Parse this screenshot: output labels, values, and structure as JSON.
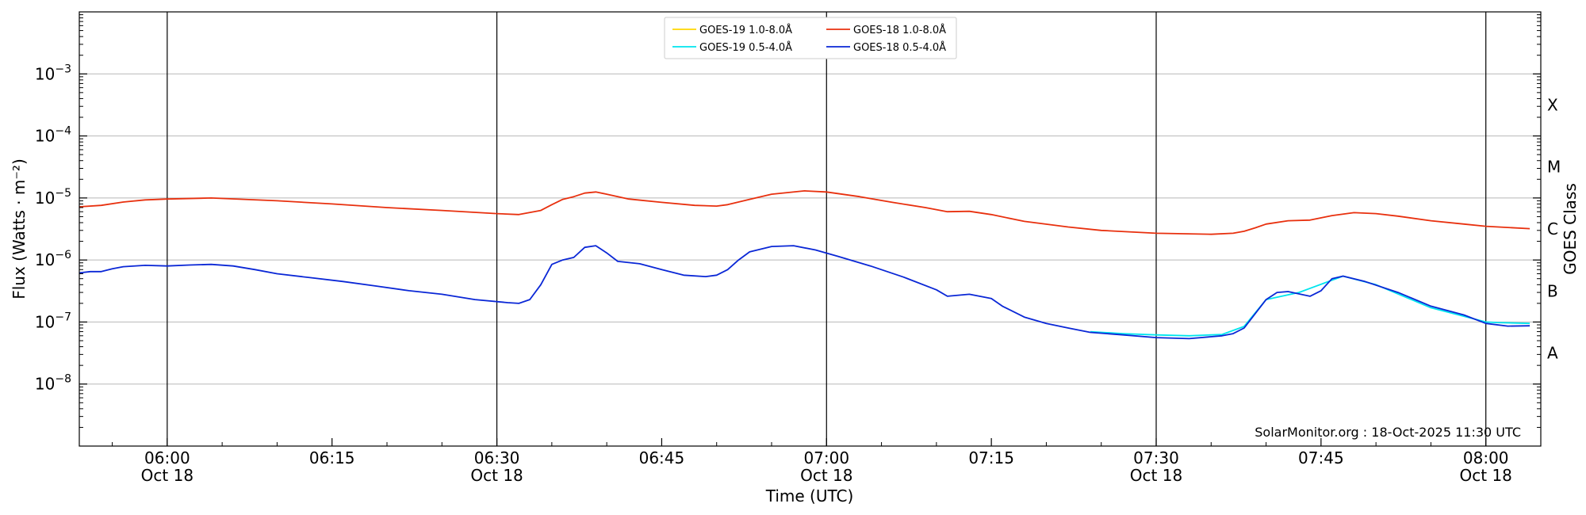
{
  "chart_data": {
    "type": "line",
    "xlabel": "Time (UTC)",
    "ylabel": "Flux (Watts · m⁻²)",
    "y2label": "GOES Class",
    "yscale": "log",
    "ylim": [
      1e-09,
      0.01
    ],
    "xlim": [
      "05:52",
      "08:05"
    ],
    "grid": "horizontal",
    "legend_position": "top-center",
    "x_ticks": [
      {
        "time": "06:00",
        "label": "06:00",
        "sublabel": "Oct 18"
      },
      {
        "time": "06:15",
        "label": "06:15",
        "sublabel": ""
      },
      {
        "time": "06:30",
        "label": "06:30",
        "sublabel": "Oct 18"
      },
      {
        "time": "06:45",
        "label": "06:45",
        "sublabel": ""
      },
      {
        "time": "07:00",
        "label": "07:00",
        "sublabel": "Oct 18"
      },
      {
        "time": "07:15",
        "label": "07:15",
        "sublabel": ""
      },
      {
        "time": "07:30",
        "label": "07:30",
        "sublabel": "Oct 18"
      },
      {
        "time": "07:45",
        "label": "07:45",
        "sublabel": ""
      },
      {
        "time": "08:00",
        "label": "08:00",
        "sublabel": "Oct 18"
      }
    ],
    "vlines": [
      "06:00",
      "06:30",
      "07:00",
      "07:30",
      "08:00"
    ],
    "y_ticks": [
      {
        "value": 1e-08,
        "mantissa": "10",
        "exponent": "−8"
      },
      {
        "value": 1e-07,
        "mantissa": "10",
        "exponent": "−7"
      },
      {
        "value": 1e-06,
        "mantissa": "10",
        "exponent": "−6"
      },
      {
        "value": 1e-05,
        "mantissa": "10",
        "exponent": "−5"
      },
      {
        "value": 0.0001,
        "mantissa": "10",
        "exponent": "−4"
      },
      {
        "value": 0.001,
        "mantissa": "10",
        "exponent": "−3"
      }
    ],
    "goes_classes": [
      {
        "label": "A",
        "value": 3.16e-08
      },
      {
        "label": "B",
        "value": 3.16e-07
      },
      {
        "label": "C",
        "value": 3.16e-06
      },
      {
        "label": "M",
        "value": 3.16e-05
      },
      {
        "label": "X",
        "value": 0.000316
      }
    ],
    "series": [
      {
        "name": "GOES-19 1.0-8.0Å",
        "color": "#ffd700",
        "points": []
      },
      {
        "name": "GOES-19 0.5-4.0Å",
        "color": "#00e5ee",
        "points": [
          [
            "07:24",
            7e-08
          ],
          [
            "07:27",
            6.5e-08
          ],
          [
            "07:30",
            6.2e-08
          ],
          [
            "07:33",
            6e-08
          ],
          [
            "07:36",
            6.3e-08
          ],
          [
            "07:38",
            8.5e-08
          ],
          [
            "07:40",
            2.3e-07
          ],
          [
            "07:43",
            3e-07
          ],
          [
            "07:47",
            5.5e-07
          ],
          [
            "07:50",
            4e-07
          ],
          [
            "07:55",
            1.7e-07
          ],
          [
            "08:00",
            1e-07
          ],
          [
            "08:01",
            9.8e-08
          ],
          [
            "08:04",
            9.5e-08
          ]
        ]
      },
      {
        "name": "GOES-18 1.0-8.0Å",
        "color": "#e8300e",
        "points": [
          [
            "05:52",
            7.2e-06
          ],
          [
            "05:54",
            7.6e-06
          ],
          [
            "05:56",
            8.6e-06
          ],
          [
            "05:58",
            9.3e-06
          ],
          [
            "06:00",
            9.6e-06
          ],
          [
            "06:04",
            1e-05
          ],
          [
            "06:10",
            9e-06
          ],
          [
            "06:15",
            8e-06
          ],
          [
            "06:20",
            7e-06
          ],
          [
            "06:25",
            6.3e-06
          ],
          [
            "06:30",
            5.6e-06
          ],
          [
            "06:32",
            5.4e-06
          ],
          [
            "06:34",
            6.3e-06
          ],
          [
            "06:35",
            7.8e-06
          ],
          [
            "06:36",
            9.5e-06
          ],
          [
            "06:37",
            1.05e-05
          ],
          [
            "06:38",
            1.2e-05
          ],
          [
            "06:39",
            1.25e-05
          ],
          [
            "06:40",
            1.15e-05
          ],
          [
            "06:42",
            9.6e-06
          ],
          [
            "06:45",
            8.5e-06
          ],
          [
            "06:48",
            7.6e-06
          ],
          [
            "06:50",
            7.4e-06
          ],
          [
            "06:51",
            7.8e-06
          ],
          [
            "06:53",
            9.5e-06
          ],
          [
            "06:55",
            1.15e-05
          ],
          [
            "06:58",
            1.3e-05
          ],
          [
            "07:00",
            1.25e-05
          ],
          [
            "07:03",
            1.05e-05
          ],
          [
            "07:06",
            8.5e-06
          ],
          [
            "07:09",
            7e-06
          ],
          [
            "07:11",
            6e-06
          ],
          [
            "07:13",
            6.1e-06
          ],
          [
            "07:15",
            5.4e-06
          ],
          [
            "07:18",
            4.2e-06
          ],
          [
            "07:22",
            3.4e-06
          ],
          [
            "07:25",
            3e-06
          ],
          [
            "07:30",
            2.7e-06
          ],
          [
            "07:35",
            2.6e-06
          ],
          [
            "07:37",
            2.7e-06
          ],
          [
            "07:38",
            2.9e-06
          ],
          [
            "07:39",
            3.3e-06
          ],
          [
            "07:40",
            3.8e-06
          ],
          [
            "07:42",
            4.3e-06
          ],
          [
            "07:44",
            4.4e-06
          ],
          [
            "07:46",
            5.2e-06
          ],
          [
            "07:48",
            5.8e-06
          ],
          [
            "07:50",
            5.6e-06
          ],
          [
            "07:52",
            5.1e-06
          ],
          [
            "07:55",
            4.3e-06
          ],
          [
            "07:58",
            3.8e-06
          ],
          [
            "08:00",
            3.5e-06
          ],
          [
            "08:04",
            3.2e-06
          ]
        ]
      },
      {
        "name": "GOES-18 0.5-4.0Å",
        "color": "#0a27d6",
        "points": [
          [
            "05:52",
            6.2e-07
          ],
          [
            "05:53",
            6.5e-07
          ],
          [
            "05:54",
            6.5e-07
          ],
          [
            "05:55",
            7.2e-07
          ],
          [
            "05:56",
            7.8e-07
          ],
          [
            "05:58",
            8.2e-07
          ],
          [
            "06:00",
            8e-07
          ],
          [
            "06:02",
            8.3e-07
          ],
          [
            "06:04",
            8.5e-07
          ],
          [
            "06:06",
            8e-07
          ],
          [
            "06:08",
            7e-07
          ],
          [
            "06:10",
            6e-07
          ],
          [
            "06:13",
            5.2e-07
          ],
          [
            "06:16",
            4.5e-07
          ],
          [
            "06:19",
            3.8e-07
          ],
          [
            "06:22",
            3.2e-07
          ],
          [
            "06:25",
            2.8e-07
          ],
          [
            "06:28",
            2.3e-07
          ],
          [
            "06:31",
            2.05e-07
          ],
          [
            "06:32",
            2e-07
          ],
          [
            "06:33",
            2.3e-07
          ],
          [
            "06:34",
            4e-07
          ],
          [
            "06:35",
            8.5e-07
          ],
          [
            "06:36",
            1e-06
          ],
          [
            "06:37",
            1.1e-06
          ],
          [
            "06:38",
            1.6e-06
          ],
          [
            "06:39",
            1.7e-06
          ],
          [
            "06:40",
            1.3e-06
          ],
          [
            "06:41",
            9.5e-07
          ],
          [
            "06:43",
            8.7e-07
          ],
          [
            "06:45",
            7e-07
          ],
          [
            "06:47",
            5.7e-07
          ],
          [
            "06:49",
            5.4e-07
          ],
          [
            "06:50",
            5.7e-07
          ],
          [
            "06:51",
            7e-07
          ],
          [
            "06:52",
            1e-06
          ],
          [
            "06:53",
            1.35e-06
          ],
          [
            "06:55",
            1.65e-06
          ],
          [
            "06:57",
            1.7e-06
          ],
          [
            "06:59",
            1.45e-06
          ],
          [
            "07:01",
            1.15e-06
          ],
          [
            "07:04",
            8e-07
          ],
          [
            "07:07",
            5.3e-07
          ],
          [
            "07:10",
            3.3e-07
          ],
          [
            "07:11",
            2.6e-07
          ],
          [
            "07:13",
            2.8e-07
          ],
          [
            "07:15",
            2.4e-07
          ],
          [
            "07:16",
            1.8e-07
          ],
          [
            "07:18",
            1.2e-07
          ],
          [
            "07:20",
            9.5e-08
          ],
          [
            "07:22",
            8e-08
          ],
          [
            "07:24",
            6.8e-08
          ],
          [
            "07:27",
            6.2e-08
          ],
          [
            "07:30",
            5.6e-08
          ],
          [
            "07:33",
            5.4e-08
          ],
          [
            "07:36",
            6e-08
          ],
          [
            "07:37",
            6.5e-08
          ],
          [
            "07:38",
            8e-08
          ],
          [
            "07:40",
            2.3e-07
          ],
          [
            "07:41",
            3e-07
          ],
          [
            "07:42",
            3.1e-07
          ],
          [
            "07:44",
            2.6e-07
          ],
          [
            "07:45",
            3.2e-07
          ],
          [
            "07:46",
            5e-07
          ],
          [
            "07:47",
            5.5e-07
          ],
          [
            "07:49",
            4.5e-07
          ],
          [
            "07:52",
            3e-07
          ],
          [
            "07:55",
            1.8e-07
          ],
          [
            "07:58",
            1.3e-07
          ],
          [
            "08:00",
            9.5e-08
          ],
          [
            "08:02",
            8.6e-08
          ],
          [
            "08:04",
            8.7e-08
          ]
        ]
      }
    ],
    "credit": "SolarMonitor.org : 18-Oct-2025 11:30 UTC"
  }
}
